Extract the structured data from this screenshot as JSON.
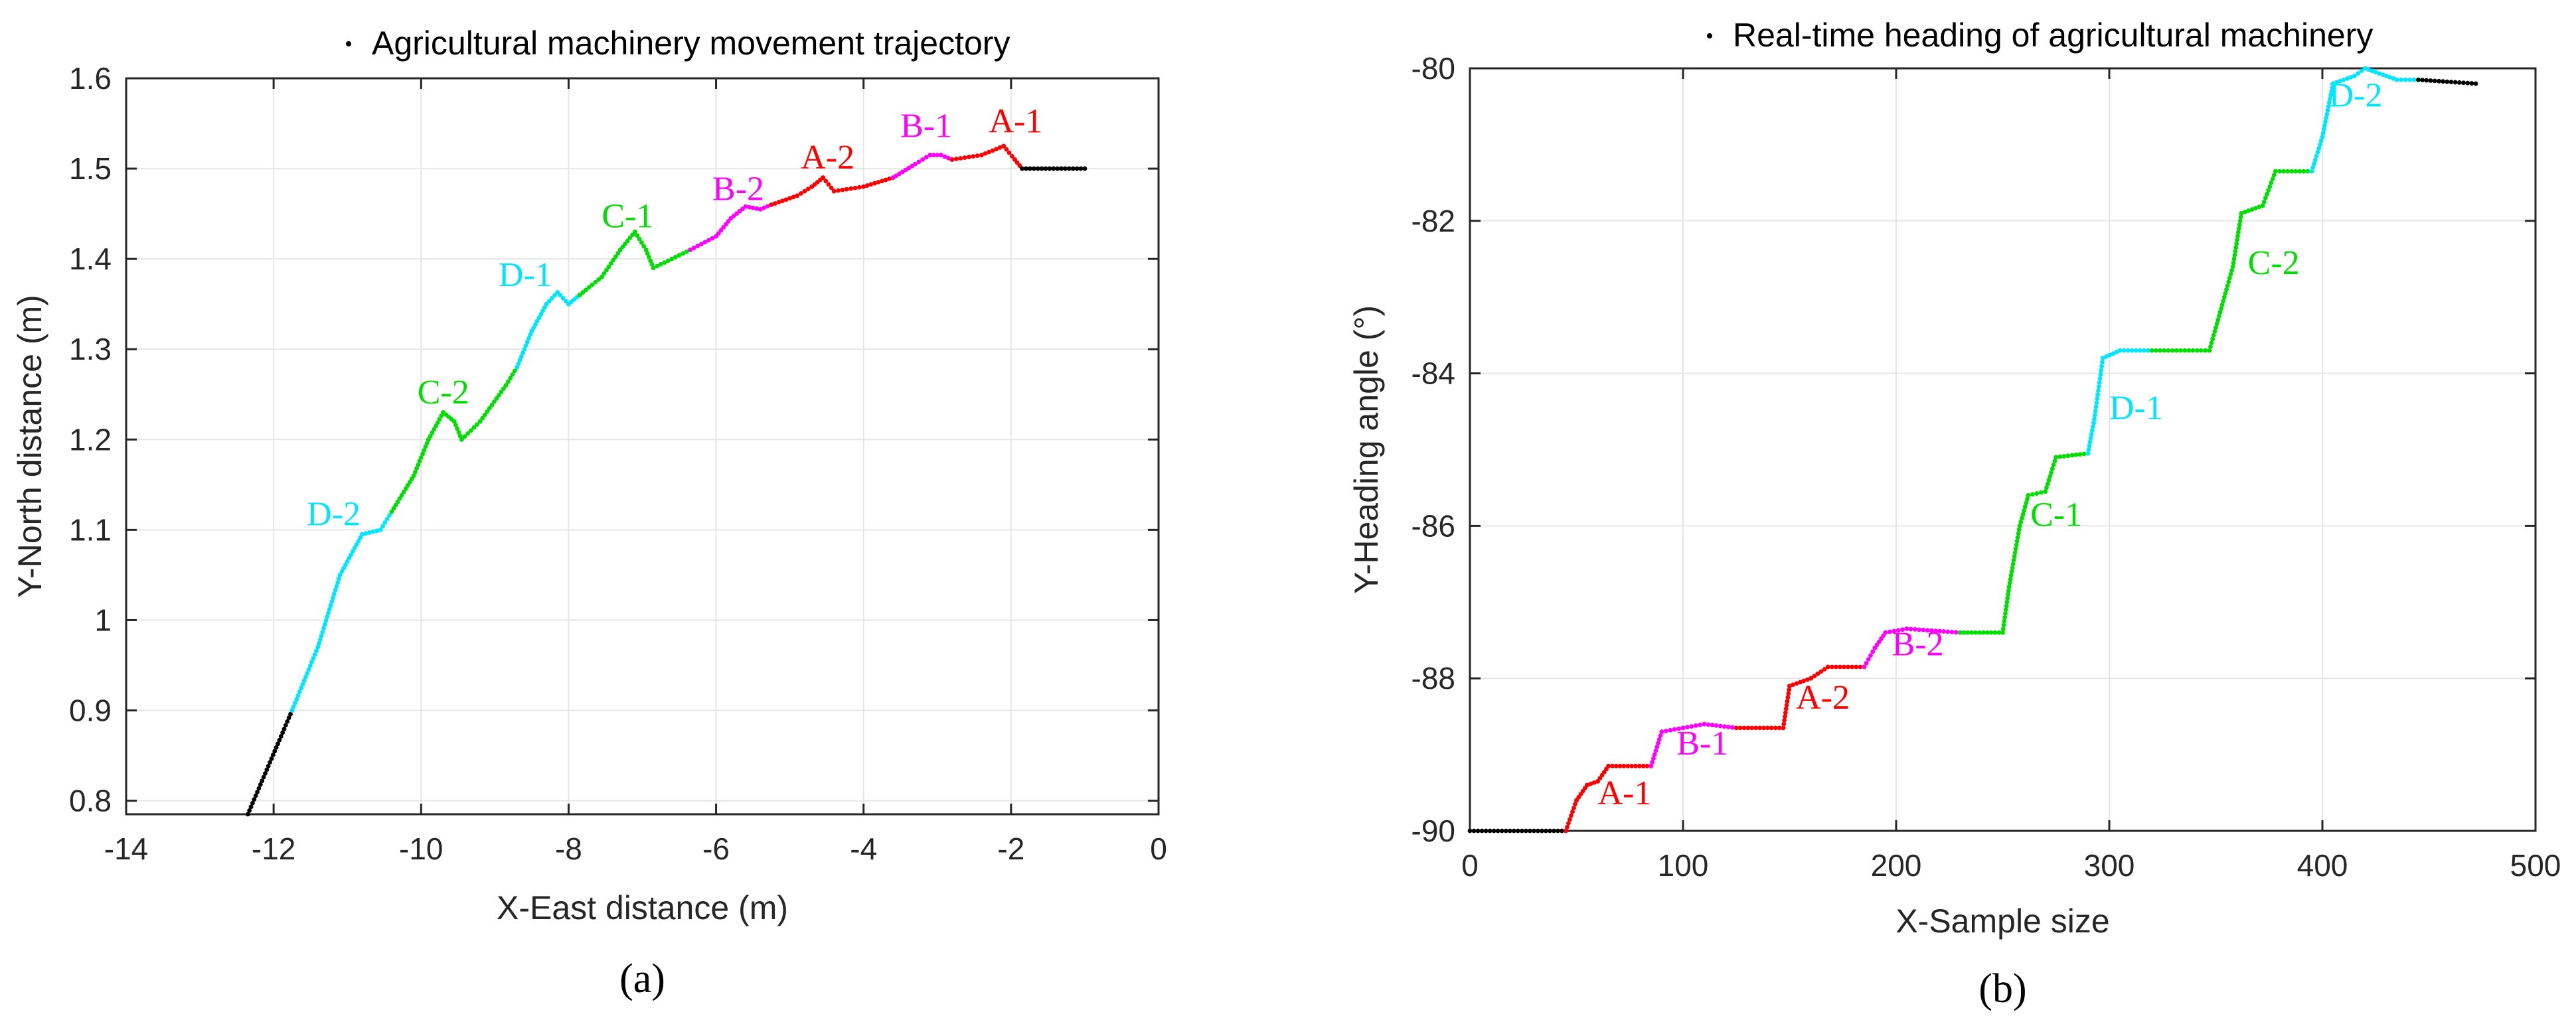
{
  "colors": {
    "A": "#ff0000",
    "B": "#ff00ff",
    "C": "#00dd00",
    "D": "#00e5ff",
    "idle": "#000000",
    "grid": "#e6e6e6",
    "axis": "#262626"
  },
  "chart_data": [
    {
      "type": "scatter",
      "panel_label": "(a)",
      "legend": "Agricultural machinery movement trajectory",
      "legend_placement": "top-right",
      "xlabel": "X-East distance (m)",
      "ylabel": "Y-North distance (m)",
      "xlim": [
        -14,
        0
      ],
      "ylim": [
        0.785,
        1.6
      ],
      "xticks": [
        -14,
        -12,
        -10,
        -8,
        -6,
        -4,
        -2,
        0
      ],
      "yticks": [
        0.8,
        0.9,
        1,
        1.1,
        1.2,
        1.3,
        1.4,
        1.5,
        1.6
      ],
      "grid": true,
      "series": [
        {
          "color_key": "idle",
          "points": [
            [
              -12.35,
              0.785
            ],
            [
              -11.75,
              0.9
            ]
          ]
        },
        {
          "color_key": "D",
          "points": [
            [
              -11.75,
              0.9
            ],
            [
              -11.4,
              0.97
            ],
            [
              -11.1,
              1.05
            ],
            [
              -10.8,
              1.095
            ],
            [
              -10.55,
              1.1
            ],
            [
              -10.4,
              1.12
            ]
          ]
        },
        {
          "color_key": "C",
          "points": [
            [
              -10.4,
              1.12
            ],
            [
              -10.1,
              1.16
            ],
            [
              -9.9,
              1.2
            ],
            [
              -9.7,
              1.23
            ],
            [
              -9.55,
              1.22
            ],
            [
              -9.45,
              1.2
            ],
            [
              -9.2,
              1.22
            ],
            [
              -8.85,
              1.26
            ],
            [
              -8.7,
              1.28
            ]
          ]
        },
        {
          "color_key": "D",
          "points": [
            [
              -8.7,
              1.28
            ],
            [
              -8.5,
              1.32
            ],
            [
              -8.3,
              1.35
            ],
            [
              -8.15,
              1.363
            ],
            [
              -8.0,
              1.35
            ],
            [
              -7.85,
              1.36
            ]
          ]
        },
        {
          "color_key": "C",
          "points": [
            [
              -7.85,
              1.36
            ],
            [
              -7.55,
              1.38
            ],
            [
              -7.3,
              1.41
            ],
            [
              -7.1,
              1.43
            ],
            [
              -6.95,
              1.41
            ],
            [
              -6.85,
              1.39
            ],
            [
              -6.6,
              1.4
            ],
            [
              -6.35,
              1.41
            ]
          ]
        },
        {
          "color_key": "B",
          "points": [
            [
              -6.35,
              1.41
            ],
            [
              -6.0,
              1.425
            ],
            [
              -5.8,
              1.445
            ],
            [
              -5.6,
              1.458
            ],
            [
              -5.4,
              1.455
            ],
            [
              -5.25,
              1.46
            ]
          ]
        },
        {
          "color_key": "A",
          "points": [
            [
              -5.25,
              1.46
            ],
            [
              -4.9,
              1.47
            ],
            [
              -4.7,
              1.48
            ],
            [
              -4.55,
              1.49
            ],
            [
              -4.4,
              1.475
            ],
            [
              -4.0,
              1.48
            ],
            [
              -3.6,
              1.49
            ]
          ]
        },
        {
          "color_key": "B",
          "points": [
            [
              -3.6,
              1.49
            ],
            [
              -3.3,
              1.505
            ],
            [
              -3.1,
              1.515
            ],
            [
              -2.95,
              1.515
            ],
            [
              -2.8,
              1.51
            ]
          ]
        },
        {
          "color_key": "A",
          "points": [
            [
              -2.8,
              1.51
            ],
            [
              -2.4,
              1.515
            ],
            [
              -2.1,
              1.525
            ],
            [
              -1.95,
              1.51
            ],
            [
              -1.85,
              1.5
            ]
          ]
        },
        {
          "color_key": "idle",
          "points": [
            [
              -1.85,
              1.5
            ],
            [
              -1.0,
              1.5
            ]
          ]
        }
      ],
      "annotations": [
        {
          "text": "A-1",
          "x": -2.3,
          "y": 1.54,
          "color_key": "A"
        },
        {
          "text": "B-1",
          "x": -3.5,
          "y": 1.535,
          "color_key": "B"
        },
        {
          "text": "A-2",
          "x": -4.85,
          "y": 1.5,
          "color_key": "A"
        },
        {
          "text": "B-2",
          "x": -6.05,
          "y": 1.465,
          "color_key": "B"
        },
        {
          "text": "C-1",
          "x": -7.55,
          "y": 1.435,
          "color_key": "C"
        },
        {
          "text": "D-1",
          "x": -8.95,
          "y": 1.37,
          "color_key": "D"
        },
        {
          "text": "C-2",
          "x": -10.05,
          "y": 1.24,
          "color_key": "C"
        },
        {
          "text": "D-2",
          "x": -11.55,
          "y": 1.105,
          "color_key": "D"
        }
      ]
    },
    {
      "type": "scatter",
      "panel_label": "(b)",
      "legend": "Real-time heading of agricultural machinery",
      "legend_placement": "top-right",
      "xlabel": "X-Sample size",
      "ylabel": "Y-Heading angle (°)",
      "xlim": [
        0,
        500
      ],
      "ylim": [
        -90,
        -80
      ],
      "xticks": [
        0,
        100,
        200,
        300,
        400,
        500
      ],
      "yticks": [
        -90,
        -88,
        -86,
        -84,
        -82,
        -80
      ],
      "ytick_labels": [
        "-90",
        "-88",
        "-86",
        "-84",
        "-82",
        "-80"
      ],
      "grid": true,
      "series": [
        {
          "color_key": "idle",
          "points": [
            [
              0,
              -90
            ],
            [
              45,
              -90
            ]
          ]
        },
        {
          "color_key": "A",
          "points": [
            [
              45,
              -90
            ],
            [
              50,
              -89.6
            ],
            [
              55,
              -89.4
            ],
            [
              60,
              -89.35
            ],
            [
              65,
              -89.15
            ],
            [
              85,
              -89.15
            ]
          ]
        },
        {
          "color_key": "B",
          "points": [
            [
              85,
              -89.15
            ],
            [
              90,
              -88.7
            ],
            [
              100,
              -88.65
            ],
            [
              110,
              -88.6
            ],
            [
              125,
              -88.65
            ]
          ]
        },
        {
          "color_key": "A",
          "points": [
            [
              125,
              -88.65
            ],
            [
              147,
              -88.65
            ],
            [
              150,
              -88.1
            ],
            [
              160,
              -88.0
            ],
            [
              168,
              -87.85
            ],
            [
              185,
              -87.85
            ]
          ]
        },
        {
          "color_key": "B",
          "points": [
            [
              185,
              -87.85
            ],
            [
              190,
              -87.6
            ],
            [
              195,
              -87.4
            ],
            [
              205,
              -87.35
            ],
            [
              230,
              -87.4
            ]
          ]
        },
        {
          "color_key": "C",
          "points": [
            [
              230,
              -87.4
            ],
            [
              250,
              -87.4
            ],
            [
              253,
              -86.8
            ],
            [
              258,
              -86.0
            ],
            [
              262,
              -85.6
            ],
            [
              270,
              -85.55
            ],
            [
              275,
              -85.1
            ],
            [
              290,
              -85.05
            ]
          ]
        },
        {
          "color_key": "D",
          "points": [
            [
              290,
              -85.05
            ],
            [
              293,
              -84.6
            ],
            [
              297,
              -83.8
            ],
            [
              305,
              -83.7
            ],
            [
              320,
              -83.7
            ]
          ]
        },
        {
          "color_key": "C",
          "points": [
            [
              320,
              -83.7
            ],
            [
              347,
              -83.7
            ],
            [
              352,
              -83.2
            ],
            [
              358,
              -82.6
            ],
            [
              362,
              -81.9
            ],
            [
              372,
              -81.8
            ],
            [
              378,
              -81.35
            ],
            [
              395,
              -81.35
            ]
          ]
        },
        {
          "color_key": "D",
          "points": [
            [
              395,
              -81.35
            ],
            [
              400,
              -80.9
            ],
            [
              405,
              -80.2
            ],
            [
              415,
              -80.1
            ],
            [
              420,
              -80.0
            ],
            [
              435,
              -80.15
            ],
            [
              445,
              -80.15
            ]
          ]
        },
        {
          "color_key": "idle",
          "points": [
            [
              445,
              -80.15
            ],
            [
              472,
              -80.2
            ]
          ]
        }
      ],
      "annotations": [
        {
          "text": "A-1",
          "x": 60,
          "y": -89.65,
          "color_key": "A"
        },
        {
          "text": "B-1",
          "x": 97,
          "y": -89.0,
          "color_key": "B"
        },
        {
          "text": "A-2",
          "x": 153,
          "y": -88.4,
          "color_key": "A"
        },
        {
          "text": "B-2",
          "x": 198,
          "y": -87.7,
          "color_key": "B"
        },
        {
          "text": "C-1",
          "x": 263,
          "y": -86.0,
          "color_key": "C"
        },
        {
          "text": "D-1",
          "x": 300,
          "y": -84.6,
          "color_key": "D"
        },
        {
          "text": "C-2",
          "x": 365,
          "y": -82.7,
          "color_key": "C"
        },
        {
          "text": "D-2",
          "x": 403,
          "y": -80.5,
          "color_key": "D"
        }
      ]
    }
  ]
}
